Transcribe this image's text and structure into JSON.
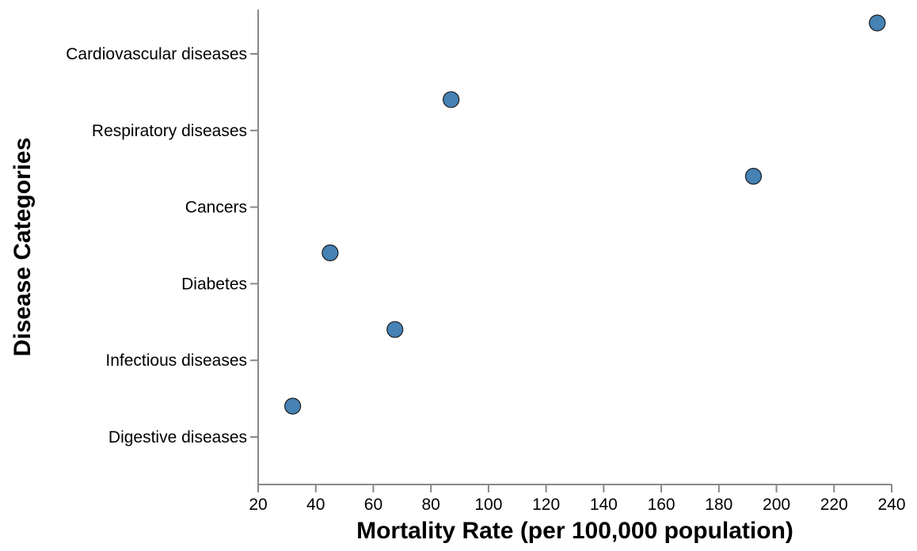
{
  "chart_data": {
    "type": "scatter",
    "xlabel": "Mortality Rate (per 100,000 population)",
    "ylabel": "Disease Categories",
    "xlim": [
      20,
      240
    ],
    "xticks": [
      20,
      40,
      60,
      80,
      100,
      120,
      140,
      160,
      180,
      200,
      220,
      240
    ],
    "categories": [
      "Cardiovascular diseases",
      "Respiratory diseases",
      "Cancers",
      "Diabetes",
      "Infectious diseases",
      "Digestive diseases"
    ],
    "values": [
      235,
      87,
      192,
      45,
      67.5,
      32
    ],
    "point_color": "#4682b4",
    "grid": false,
    "legend": "none"
  }
}
